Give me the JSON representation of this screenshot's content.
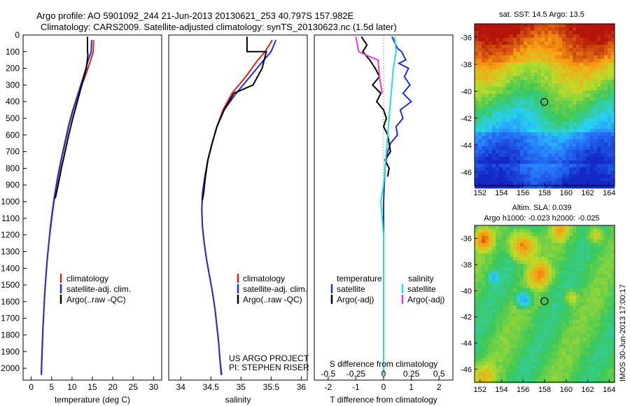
{
  "header": {
    "line1": "Argo profile: AO 5901092_244 21-Jun-2013 20130621_253 40.797S 157.982E",
    "line2": "Climatology: CARS2009. Satellite-adjusted climatology: synTS_20130623.nc (1.5d later)"
  },
  "credit": {
    "line1": "US ARGO PROJECT",
    "line2": "PI: STEPHEN RISER"
  },
  "side_stamp": "IMOS 30-Jun-2013 17:00:17",
  "colors": {
    "climatology": "#e0201c",
    "satellite": "#1f2fd8",
    "argo": "#000000",
    "sat_salinity": "#22dde6",
    "argo_salinity": "#e63cd6"
  },
  "chart_data": [
    {
      "type": "line",
      "xlabel": "temperature (deg C)",
      "ylabel": "",
      "xlim": [
        -2,
        32
      ],
      "ylim": [
        2050,
        0
      ],
      "xticks": [
        0,
        5,
        10,
        15,
        20,
        25,
        30
      ],
      "yticks": [
        0,
        100,
        200,
        300,
        400,
        500,
        600,
        700,
        800,
        900,
        1000,
        1100,
        1200,
        1300,
        1400,
        1500,
        1600,
        1700,
        1800,
        1900,
        2000
      ],
      "legend": [
        "climatology",
        "satellite-adj. clim.",
        "Argo(..raw -QC)"
      ],
      "series": [
        {
          "name": "climatology",
          "color": "#e0201c",
          "x": [
            15.3,
            15.2,
            14.6,
            13.2,
            11.6,
            10.3,
            9.2,
            8.3,
            7.4,
            6.6,
            5.9,
            5.3,
            4.8,
            4.3,
            3.9,
            3.6,
            3.3,
            3.1,
            2.9,
            2.7,
            2.55,
            2.45
          ],
          "y": [
            30,
            100,
            150,
            250,
            350,
            450,
            550,
            650,
            750,
            850,
            950,
            1050,
            1150,
            1250,
            1350,
            1450,
            1550,
            1650,
            1750,
            1850,
            1950,
            2040
          ]
        },
        {
          "name": "satellite-adj. clim.",
          "color": "#1f2fd8",
          "x": [
            14.8,
            14.7,
            14.0,
            12.8,
            11.5,
            10.2,
            9.1,
            8.2,
            7.3,
            6.5,
            5.8,
            5.2,
            4.7,
            4.3,
            3.9,
            3.6,
            3.3,
            3.1,
            2.9,
            2.75,
            2.6,
            2.5
          ],
          "y": [
            30,
            100,
            150,
            250,
            350,
            450,
            550,
            650,
            750,
            850,
            950,
            1050,
            1150,
            1250,
            1350,
            1450,
            1550,
            1650,
            1750,
            1850,
            1950,
            2040
          ]
        },
        {
          "name": "Argo(..raw -QC)",
          "color": "#000000",
          "x": [
            13.8,
            13.8,
            13.9,
            13.5,
            12.4,
            11.3,
            10.2,
            9.2,
            8.3,
            7.4,
            6.6,
            5.9
          ],
          "y": [
            10,
            100,
            120,
            200,
            300,
            400,
            500,
            600,
            700,
            800,
            900,
            980
          ]
        }
      ]
    },
    {
      "type": "line",
      "xlabel": "salinity",
      "ylabel": "",
      "xlim": [
        33.8,
        36.1
      ],
      "ylim": [
        2050,
        0
      ],
      "xticks": [
        34,
        34.5,
        35,
        35.5,
        36
      ],
      "legend": [
        "climatology",
        "satellite-adj. clim.",
        "Argo(..raw -QC)"
      ],
      "series": [
        {
          "name": "climatology",
          "color": "#e0201c",
          "x": [
            35.52,
            35.4,
            35.28,
            35.08,
            34.85,
            34.7,
            34.6,
            34.52,
            34.45,
            34.4,
            34.36,
            34.35,
            34.36,
            34.39,
            34.43,
            34.48,
            34.53,
            34.57,
            34.6,
            34.63,
            34.65,
            34.67
          ],
          "y": [
            30,
            100,
            150,
            250,
            350,
            450,
            550,
            650,
            750,
            850,
            950,
            1050,
            1150,
            1250,
            1350,
            1450,
            1550,
            1650,
            1750,
            1850,
            1950,
            2040
          ]
        },
        {
          "name": "satellite-adj. clim.",
          "color": "#1f2fd8",
          "x": [
            35.58,
            35.5,
            35.38,
            35.15,
            34.92,
            34.72,
            34.6,
            34.52,
            34.45,
            34.4,
            34.36,
            34.35,
            34.36,
            34.39,
            34.43,
            34.48,
            34.53,
            34.57,
            34.6,
            34.63,
            34.65,
            34.68
          ],
          "y": [
            30,
            100,
            150,
            250,
            350,
            450,
            550,
            650,
            750,
            850,
            950,
            1050,
            1150,
            1250,
            1350,
            1450,
            1550,
            1650,
            1750,
            1850,
            1950,
            2040
          ]
        },
        {
          "name": "Argo(..raw -QC)",
          "color": "#000000",
          "x": [
            35.1,
            35.1,
            35.42,
            35.35,
            35.2,
            34.88,
            34.72,
            34.6,
            34.52,
            34.45,
            34.41,
            34.38,
            34.36
          ],
          "y": [
            10,
            100,
            100,
            200,
            300,
            350,
            450,
            550,
            650,
            750,
            850,
            950,
            990
          ]
        }
      ]
    },
    {
      "type": "line",
      "xlabel": "T difference from climatology",
      "title": "S difference from climatology",
      "xlim": [
        -2.5,
        2.5
      ],
      "ylim": [
        2050,
        0
      ],
      "xticks": [
        -2,
        -1,
        0,
        1,
        2
      ],
      "top_ticks": [
        "-0.5",
        "-0.25",
        "0",
        "0.25",
        "0.5"
      ],
      "legend": [
        "temperature",
        "satellite",
        "Argo(-adj)",
        "salinity",
        "satellite",
        "Argo(-adj)"
      ],
      "series": [
        {
          "name": "satellite",
          "group": "temperature",
          "color": "#1f2fd8",
          "x": [
            0.3,
            0.5,
            0.65,
            0.8,
            0.55,
            0.9,
            0.75,
            0.95,
            0.7,
            1.0,
            0.6,
            0.7,
            0.45,
            0.5,
            0.25,
            0.15,
            0.05,
            0.0,
            0.0,
            0.0,
            0.0
          ],
          "y": [
            10,
            80,
            100,
            150,
            170,
            200,
            250,
            300,
            350,
            400,
            450,
            500,
            550,
            600,
            650,
            700,
            800,
            1000,
            1400,
            1800,
            2040
          ]
        },
        {
          "name": "Argo(-adj)",
          "group": "temperature",
          "color": "#000000",
          "x": [
            -0.8,
            -0.6,
            -0.75,
            -0.5,
            -0.3,
            -0.15,
            -0.4,
            -0.1,
            -0.25,
            0.0,
            0.1,
            0.0,
            0.15,
            0.25,
            0.05,
            0.2,
            0.15
          ],
          "y": [
            10,
            60,
            100,
            150,
            200,
            250,
            300,
            350,
            400,
            450,
            500,
            550,
            600,
            700,
            750,
            800,
            850
          ]
        },
        {
          "name": "satellite",
          "group": "salinity",
          "color": "#22dde6",
          "x": [
            0.4,
            0.45,
            0.35,
            0.3,
            0.25,
            0.2,
            0.15,
            0.1,
            0.05,
            0.0,
            -0.1,
            0.0,
            0.0,
            0.0
          ],
          "y": [
            10,
            100,
            200,
            300,
            400,
            500,
            600,
            700,
            800,
            900,
            1000,
            1200,
            1600,
            2040
          ]
        },
        {
          "name": "Argo(-adj)",
          "group": "salinity",
          "color": "#e63cd6",
          "x": [
            -1.0,
            -0.9,
            -0.5,
            -0.2,
            -0.15,
            -0.05
          ],
          "y": [
            10,
            100,
            130,
            150,
            250,
            350
          ]
        }
      ]
    },
    {
      "type": "heatmap",
      "title": "sat. SST: 14.5 Argo: 13.5",
      "xlim": [
        151.5,
        164.5
      ],
      "ylim": [
        -47,
        -35
      ],
      "xticks": [
        152,
        154,
        156,
        158,
        160,
        162,
        164
      ],
      "yticks": [
        -36,
        -38,
        -40,
        -42,
        -44,
        -46
      ],
      "marker": {
        "lon": 157.982,
        "lat": -40.797
      }
    },
    {
      "type": "heatmap",
      "title": "Altim. SLA: 0.039",
      "subtitle": "Argo h1000: -0.023 h2000: -0.025",
      "xlim": [
        151.5,
        164.5
      ],
      "ylim": [
        -47,
        -35
      ],
      "xticks": [
        152,
        154,
        156,
        158,
        160,
        162,
        164
      ],
      "yticks": [
        -36,
        -38,
        -40,
        -42,
        -44,
        -46
      ],
      "marker": {
        "lon": 157.982,
        "lat": -40.797
      }
    }
  ]
}
